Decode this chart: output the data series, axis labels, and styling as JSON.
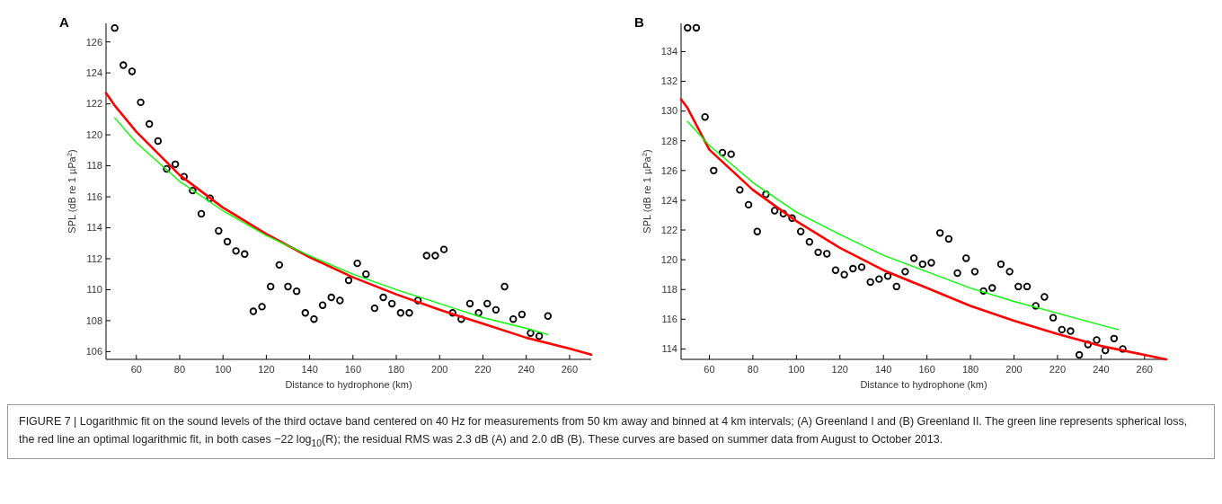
{
  "chart_data": [
    {
      "type": "scatter",
      "title": "A",
      "xlabel": "Distance to hydrophone (km)",
      "ylabel": "SPL (dB re 1 µPa$^{2}$)",
      "xlim": [
        46,
        270
      ],
      "ylim": [
        105.5,
        127.2
      ],
      "xticks": [
        60,
        80,
        100,
        120,
        140,
        160,
        180,
        200,
        220,
        240,
        260
      ],
      "yticks": [
        106,
        108,
        110,
        112,
        114,
        116,
        118,
        120,
        122,
        124,
        126
      ],
      "series": [
        {
          "type": "scatter",
          "marker": "circle",
          "color": "#000000",
          "x": [
            50,
            54,
            58,
            62,
            66,
            70,
            74,
            78,
            82,
            86,
            90,
            94,
            98,
            102,
            106,
            110,
            114,
            118,
            122,
            126,
            130,
            134,
            138,
            142,
            146,
            150,
            154,
            158,
            162,
            166,
            170,
            174,
            178,
            182,
            186,
            190,
            194,
            198,
            202,
            206,
            210,
            214,
            218,
            222,
            226,
            230,
            234,
            238,
            242,
            246,
            250
          ],
          "values": [
            126.9,
            124.5,
            124.1,
            122.1,
            120.7,
            119.6,
            117.8,
            118.1,
            117.3,
            116.4,
            114.9,
            115.9,
            113.8,
            113.1,
            112.5,
            112.3,
            108.6,
            108.9,
            110.2,
            111.6,
            110.2,
            109.9,
            108.5,
            108.1,
            109.0,
            109.5,
            109.3,
            110.6,
            111.7,
            111.0,
            108.8,
            109.5,
            109.1,
            108.5,
            108.5,
            109.3,
            112.2,
            112.2,
            112.6,
            108.5,
            108.1,
            109.1,
            108.5,
            109.1,
            108.7,
            110.2,
            108.1,
            108.4,
            107.2,
            107.0,
            108.3
          ]
        },
        {
          "type": "line",
          "color": "#ff0000",
          "x": [
            46,
            50,
            60,
            80,
            100,
            120,
            140,
            160,
            180,
            200,
            220,
            240,
            260,
            270
          ],
          "values": [
            122.7,
            121.9,
            120.2,
            117.4,
            115.3,
            113.6,
            112.1,
            110.8,
            109.7,
            108.7,
            107.8,
            106.9,
            106.2,
            105.8
          ]
        },
        {
          "type": "line",
          "color": "#00ff00",
          "x": [
            50,
            60,
            80,
            100,
            120,
            140,
            160,
            180,
            200,
            220,
            240,
            250
          ],
          "values": [
            121.1,
            119.5,
            117.0,
            115.1,
            113.5,
            112.2,
            111.0,
            110.0,
            109.1,
            108.2,
            107.5,
            107.1
          ]
        }
      ],
      "annotations": [
        "FIGURE 7 | Logarithmic fit on the sound levels of the third octave band centered on 40 Hz for measurements from 50 km away and binned at 4 km intervals; (A) Greenland I and (B) Greenland II. The green line represents spherical loss, the red line an optimal logarithmic fit, in both cases −22 log$_{10}$(R); the residual RMS was 2.3 dB (A) and 2.0 dB (B). These curves are based on summer data from August to October 2013."
      ]
    },
    {
      "type": "scatter",
      "title": "B",
      "xlabel": "Distance to hydrophone (km)",
      "ylabel": "SPL (dB re 1 µPa$^{2}$)",
      "xlim": [
        47,
        270
      ],
      "ylim": [
        113.3,
        135.9
      ],
      "xticks": [
        60,
        80,
        100,
        120,
        140,
        160,
        180,
        200,
        220,
        240,
        260
      ],
      "yticks": [
        114,
        116,
        118,
        120,
        122,
        124,
        126,
        128,
        130,
        132,
        134
      ],
      "series": [
        {
          "type": "scatter",
          "marker": "circle",
          "color": "#000000",
          "x": [
            50,
            54,
            58,
            62,
            66,
            70,
            74,
            78,
            82,
            86,
            90,
            94,
            98,
            102,
            106,
            110,
            114,
            118,
            122,
            126,
            130,
            134,
            138,
            142,
            146,
            150,
            154,
            158,
            162,
            166,
            170,
            174,
            178,
            182,
            186,
            190,
            194,
            198,
            202,
            206,
            210,
            214,
            218,
            222,
            226,
            230,
            234,
            238,
            242,
            246,
            250
          ],
          "values": [
            135.6,
            135.6,
            129.6,
            126.0,
            127.2,
            127.1,
            124.7,
            123.7,
            121.9,
            124.4,
            123.3,
            123.1,
            122.8,
            121.9,
            121.2,
            120.5,
            120.4,
            119.3,
            119.0,
            119.4,
            119.5,
            118.5,
            118.7,
            118.9,
            118.2,
            119.2,
            120.1,
            119.7,
            119.8,
            121.8,
            121.4,
            119.1,
            120.1,
            119.2,
            117.9,
            118.1,
            119.7,
            119.2,
            118.2,
            118.2,
            116.9,
            117.5,
            116.1,
            115.3,
            115.2,
            113.6,
            114.3,
            114.6,
            113.9,
            114.7,
            114.0
          ]
        },
        {
          "type": "line",
          "color": "#ff0000",
          "x": [
            47,
            50,
            60,
            80,
            100,
            120,
            140,
            160,
            180,
            200,
            220,
            240,
            260,
            270
          ],
          "values": [
            130.8,
            130.2,
            127.4,
            124.7,
            122.6,
            120.8,
            119.3,
            118.1,
            116.9,
            115.9,
            115.0,
            114.2,
            113.6,
            113.3
          ]
        },
        {
          "type": "line",
          "color": "#00ff00",
          "x": [
            50,
            60,
            80,
            100,
            120,
            140,
            160,
            180,
            200,
            220,
            240,
            248
          ],
          "values": [
            129.3,
            127.7,
            125.2,
            123.2,
            121.7,
            120.3,
            119.2,
            118.1,
            117.2,
            116.4,
            115.6,
            115.3
          ]
        }
      ]
    }
  ]
}
